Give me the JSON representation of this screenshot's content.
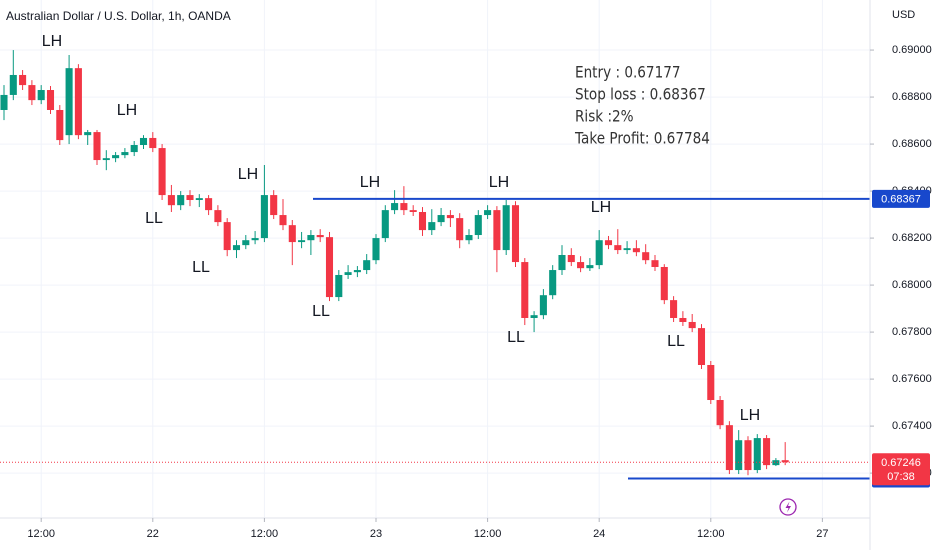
{
  "chart_data": {
    "type": "candlestick",
    "title": "Australian Dollar / U.S. Dollar, 1h, OANDA",
    "currency": "USD",
    "up_color": "#089981",
    "down_color": "#f23645",
    "xlim": [
      -0.43,
      93.12
    ],
    "xticks": [
      {
        "value": 4,
        "label": "12:00"
      },
      {
        "value": 16,
        "label": "22"
      },
      {
        "value": 28,
        "label": "12:00"
      },
      {
        "value": 40,
        "label": "23"
      },
      {
        "value": 52,
        "label": "12:00"
      },
      {
        "value": 64,
        "label": "24"
      },
      {
        "value": 76,
        "label": "12:00"
      },
      {
        "value": 88,
        "label": "27"
      }
    ],
    "ylim": [
      0.67009,
      0.69213
    ],
    "yticks": [
      {
        "value": 0.69,
        "label": "0.69000"
      },
      {
        "value": 0.688,
        "label": "0.68800"
      },
      {
        "value": 0.686,
        "label": "0.68600"
      },
      {
        "value": 0.684,
        "label": "0.68400"
      },
      {
        "value": 0.682,
        "label": "0.68200"
      },
      {
        "value": 0.68,
        "label": "0.68000"
      },
      {
        "value": 0.678,
        "label": "0.67800"
      },
      {
        "value": 0.676,
        "label": "0.67600"
      },
      {
        "value": 0.674,
        "label": "0.67400"
      },
      {
        "value": 0.672,
        "label": "0.67200"
      }
    ],
    "grid": true,
    "open": [
      0.68745,
      0.68809,
      0.68894,
      0.68851,
      0.68787,
      0.6883,
      0.68745,
      0.68638,
      0.68923,
      0.68638,
      0.68651,
      0.68532,
      0.6854,
      0.68553,
      0.68566,
      0.68596,
      0.68626,
      0.68583,
      0.68383,
      0.6834,
      0.68383,
      0.68362,
      0.6837,
      0.68319,
      0.68268,
      0.68149,
      0.6817,
      0.68191,
      0.682,
      0.68383,
      0.68298,
      0.68255,
      0.68183,
      0.68191,
      0.68213,
      0.68204,
      0.67949,
      0.68043,
      0.68055,
      0.68064,
      0.68106,
      0.682,
      0.68319,
      0.68349,
      0.68319,
      0.68311,
      0.68234,
      0.68268,
      0.68298,
      0.68285,
      0.68191,
      0.68213,
      0.68298,
      0.68319,
      0.68149,
      0.6834,
      0.68098,
      0.6786,
      0.67872,
      0.67957,
      0.68064,
      0.68128,
      0.68098,
      0.68072,
      0.68085,
      0.68191,
      0.6817,
      0.68149,
      0.68157,
      0.6814,
      0.68106,
      0.68077,
      0.67936,
      0.6786,
      0.67843,
      0.67817,
      0.6766,
      0.67511,
      0.67404,
      0.67213,
      0.6734,
      0.67213,
      0.67349,
      0.67234,
      0.67255
    ],
    "high": [
      0.68851,
      0.69,
      0.68915,
      0.68872,
      0.68851,
      0.68847,
      0.68766,
      0.68979,
      0.6894,
      0.6866,
      0.6866,
      0.68574,
      0.68566,
      0.68583,
      0.68613,
      0.68638,
      0.68651,
      0.686,
      0.68426,
      0.684,
      0.68404,
      0.68387,
      0.68383,
      0.6834,
      0.68285,
      0.68191,
      0.68213,
      0.6823,
      0.68511,
      0.68404,
      0.68366,
      0.68277,
      0.68226,
      0.68234,
      0.68238,
      0.68226,
      0.68064,
      0.68085,
      0.68081,
      0.68132,
      0.68217,
      0.6834,
      0.68404,
      0.68421,
      0.6834,
      0.68332,
      0.68323,
      0.68328,
      0.68319,
      0.68306,
      0.68238,
      0.68319,
      0.6834,
      0.68336,
      0.68362,
      0.68357,
      0.68115,
      0.67889,
      0.67983,
      0.68085,
      0.6817,
      0.68157,
      0.68123,
      0.68115,
      0.68234,
      0.68209,
      0.68238,
      0.68187,
      0.68191,
      0.68174,
      0.68128,
      0.68089,
      0.67953,
      0.67889,
      0.67877,
      0.67834,
      0.67677,
      0.67528,
      0.67421,
      0.67383,
      0.67357,
      0.67366,
      0.67362,
      0.67264,
      0.67332
    ],
    "low": [
      0.68702,
      0.68787,
      0.6883,
      0.68766,
      0.6877,
      0.68728,
      0.68596,
      0.686,
      0.68621,
      0.68596,
      0.68511,
      0.68489,
      0.68523,
      0.6854,
      0.68549,
      0.68579,
      0.68566,
      0.68362,
      0.68311,
      0.68319,
      0.68336,
      0.68332,
      0.68298,
      0.68251,
      0.68123,
      0.68115,
      0.68153,
      0.68174,
      0.68183,
      0.68281,
      0.68234,
      0.68085,
      0.68157,
      0.68128,
      0.68183,
      0.67932,
      0.67932,
      0.68026,
      0.68034,
      0.68047,
      0.68089,
      0.68183,
      0.68302,
      0.68298,
      0.68294,
      0.68209,
      0.68213,
      0.68251,
      0.68247,
      0.68157,
      0.68174,
      0.68196,
      0.68281,
      0.68055,
      0.68128,
      0.68077,
      0.6783,
      0.678,
      0.67855,
      0.6794,
      0.68043,
      0.68081,
      0.68055,
      0.6806,
      0.68068,
      0.68153,
      0.68132,
      0.68132,
      0.68123,
      0.68089,
      0.6806,
      0.67919,
      0.67843,
      0.67826,
      0.678,
      0.67643,
      0.67494,
      0.67387,
      0.67196,
      0.67196,
      0.67191,
      0.672,
      0.67217,
      0.6723,
      0.67234
    ],
    "close": [
      0.68809,
      0.68894,
      0.68851,
      0.68787,
      0.6883,
      0.68745,
      0.68617,
      0.68923,
      0.68638,
      0.68651,
      0.68532,
      0.6854,
      0.68553,
      0.68566,
      0.68596,
      0.68626,
      0.68583,
      0.68383,
      0.6834,
      0.68383,
      0.68362,
      0.6837,
      0.68319,
      0.68268,
      0.68149,
      0.6817,
      0.68191,
      0.682,
      0.68383,
      0.68298,
      0.68255,
      0.68183,
      0.68191,
      0.68213,
      0.68204,
      0.67949,
      0.68043,
      0.68055,
      0.68064,
      0.68106,
      0.682,
      0.68319,
      0.68349,
      0.68319,
      0.68311,
      0.68234,
      0.68268,
      0.68298,
      0.68285,
      0.68191,
      0.68213,
      0.68298,
      0.68319,
      0.68149,
      0.6834,
      0.68098,
      0.6786,
      0.67872,
      0.67957,
      0.68064,
      0.68128,
      0.68098,
      0.68072,
      0.68085,
      0.68191,
      0.6817,
      0.68149,
      0.68157,
      0.6814,
      0.68106,
      0.68077,
      0.67936,
      0.6786,
      0.67843,
      0.67817,
      0.6766,
      0.67511,
      0.67404,
      0.67213,
      0.6734,
      0.67213,
      0.67349,
      0.67234,
      0.67255,
      0.67246
    ],
    "levels": [
      {
        "value": 0.68367,
        "color": "#1848cc"
      },
      {
        "value": 0.67177,
        "color": "#1848cc"
      }
    ],
    "last_price": 0.67246,
    "countdown": "07:38",
    "swing_labels": [
      "LH",
      "LH",
      "LL",
      "LL",
      "LH",
      "LL",
      "LH",
      "LH",
      "LL",
      "LH",
      "LL",
      "LH"
    ],
    "annotation": [
      "Entry : 0.67177",
      "Stop loss : 0.68367",
      "Risk :2%",
      "Take Profit:  0.67784"
    ]
  }
}
